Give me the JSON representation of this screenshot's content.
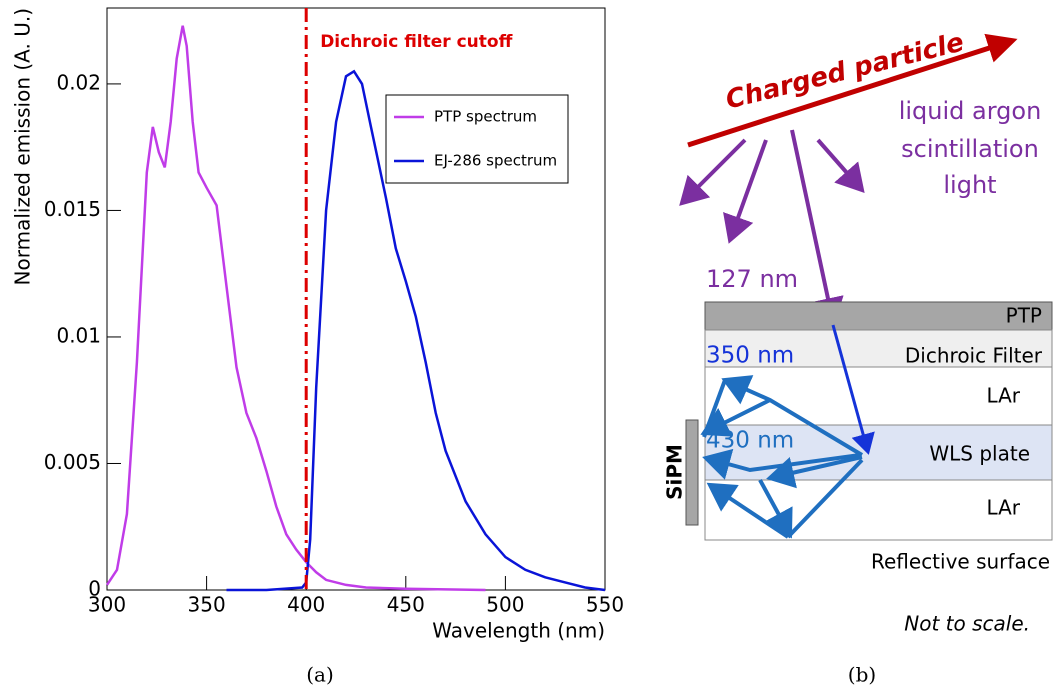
{
  "chart_data": {
    "type": "line",
    "x_label": "Wavelength (nm)",
    "y_label": "Normalized emission (A. U.)",
    "xlim": [
      300,
      550
    ],
    "ylim": [
      0,
      0.023
    ],
    "xticks": [
      300,
      350,
      400,
      450,
      500,
      550
    ],
    "yticks": [
      0,
      0.005,
      0.01,
      0.015,
      0.02
    ],
    "grid": false,
    "legend": "top right",
    "cutoff": {
      "x": 400,
      "label": "Dichroic filter cutoff",
      "color": "#dd0000"
    },
    "series": [
      {
        "name": "PTP spectrum",
        "color": "#c03ce8",
        "x": [
          300,
          305,
          310,
          315,
          320,
          323,
          326,
          329,
          332,
          335,
          338,
          340,
          343,
          346,
          350,
          355,
          360,
          365,
          370,
          375,
          380,
          385,
          390,
          395,
          400,
          405,
          410,
          420,
          430,
          450,
          490
        ],
        "values": [
          0.0002,
          0.0008,
          0.003,
          0.009,
          0.0165,
          0.0183,
          0.0173,
          0.0167,
          0.0185,
          0.021,
          0.0223,
          0.0215,
          0.0185,
          0.0165,
          0.0159,
          0.0152,
          0.012,
          0.0088,
          0.007,
          0.006,
          0.0047,
          0.0033,
          0.0022,
          0.0016,
          0.0011,
          0.0007,
          0.0004,
          0.0002,
          0.0001,
          5e-05,
          0
        ]
      },
      {
        "name": "EJ-286 spectrum",
        "color": "#0a14d8",
        "x": [
          360,
          380,
          398,
          400,
          402,
          405,
          410,
          415,
          420,
          424,
          428,
          432,
          436,
          440,
          445,
          450,
          455,
          460,
          465,
          470,
          480,
          490,
          500,
          510,
          520,
          530,
          540,
          550
        ],
        "values": [
          0,
          0,
          0.0001,
          0.0003,
          0.002,
          0.008,
          0.015,
          0.0185,
          0.0203,
          0.0205,
          0.02,
          0.0185,
          0.017,
          0.0155,
          0.0135,
          0.0122,
          0.0108,
          0.009,
          0.007,
          0.0055,
          0.0035,
          0.0022,
          0.0013,
          0.0008,
          0.0005,
          0.0003,
          0.0001,
          0
        ]
      }
    ]
  },
  "diagram": {
    "particle": "Charged particle",
    "scintillation": [
      "liquid argon",
      "scintillation",
      "light"
    ],
    "uv_wavelength": "127 nm",
    "blue_wavelength": "350 nm",
    "wls_wavelength": "430 nm",
    "layers": [
      "PTP",
      "Dichroic Filter",
      "LAr",
      "WLS plate",
      "LAr"
    ],
    "sipm": "SiPM",
    "reflector": "Reflective surface",
    "note": "Not to scale."
  },
  "captions": [
    "(a)",
    "(b)"
  ]
}
